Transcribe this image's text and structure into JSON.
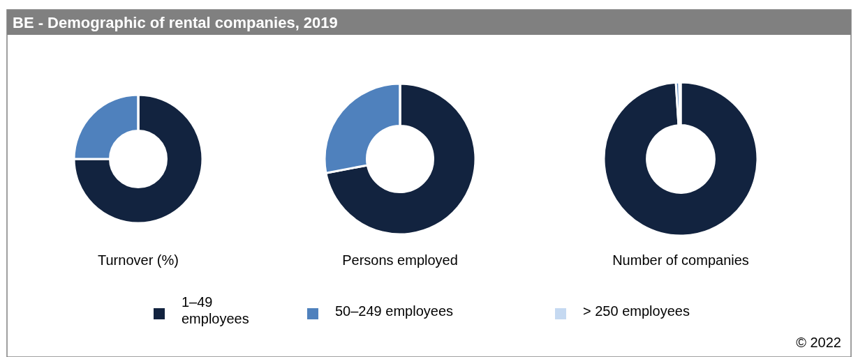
{
  "chart_data": [
    {
      "type": "donut",
      "title": "BE - Demographic of rental companies, 2019",
      "xlabel": "Turnover (%)",
      "categories": [
        "1–49 employees",
        "50–249 employees",
        "> 250 employees"
      ],
      "values": [
        75,
        25,
        0
      ],
      "colors": [
        "#12233f",
        "#4f81bd",
        "#c5d9f1"
      ],
      "legend": "bottom"
    },
    {
      "type": "donut",
      "xlabel": "Persons employed",
      "categories": [
        null,
        null,
        null
      ],
      "values": [
        72,
        28,
        0
      ],
      "colors": [
        "#12233f",
        "#4f81bd",
        "#c5d9f1"
      ]
    },
    {
      "type": "donut",
      "xlabel": "Number of companies",
      "categories": [
        null,
        null,
        null
      ],
      "values": [
        99,
        0.7,
        0.3
      ],
      "colors": [
        "#12233f",
        "#4f81bd",
        "#c5d9f1"
      ],
      "annotations": [
        "© 2022"
      ]
    }
  ]
}
